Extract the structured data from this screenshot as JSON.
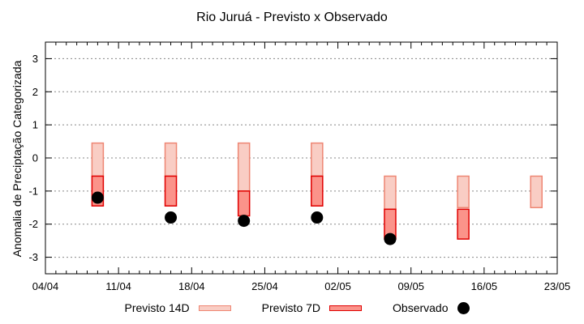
{
  "chart_data": {
    "type": "bar",
    "title": "Rio Juruá - Previsto x Observado",
    "xlabel": "",
    "ylabel": "Anomalia de Preciptação Categorizada",
    "ylim": [
      -3.5,
      3.5
    ],
    "yticks": [
      -3,
      -2,
      -1,
      0,
      1,
      2,
      3
    ],
    "grid": "horizontal-dotted",
    "grid_color": "#888888",
    "axis_color": "#000000",
    "legend_position": "bottom",
    "x_total_days": 49,
    "x_tick_interval_days": 7,
    "x_minor_tick_interval_days": 1,
    "xticks": [
      {
        "label": "04/04",
        "day": 0
      },
      {
        "label": "11/04",
        "day": 7
      },
      {
        "label": "18/04",
        "day": 14
      },
      {
        "label": "25/04",
        "day": 21
      },
      {
        "label": "02/05",
        "day": 28
      },
      {
        "label": "09/05",
        "day": 35
      },
      {
        "label": "16/05",
        "day": 42
      },
      {
        "label": "23/05",
        "day": 49
      }
    ],
    "series": [
      {
        "name": "Previsto 14D",
        "type": "range_bar",
        "fill": "#f9cdc4",
        "border": "#ee8673",
        "points": [
          {
            "date": "09/04",
            "day": 5,
            "top": 0.45,
            "bottom": -0.55
          },
          {
            "date": "16/04",
            "day": 12,
            "top": 0.45,
            "bottom": -0.55
          },
          {
            "date": "23/04",
            "day": 19,
            "top": 0.45,
            "bottom": -1.0
          },
          {
            "date": "30/04",
            "day": 26,
            "top": 0.45,
            "bottom": -0.55
          },
          {
            "date": "07/05",
            "day": 33,
            "top": -0.55,
            "bottom": -1.55
          },
          {
            "date": "14/05",
            "day": 40,
            "top": -0.55,
            "bottom": -1.5
          },
          {
            "date": "21/05",
            "day": 47,
            "top": -0.55,
            "bottom": -1.5
          }
        ]
      },
      {
        "name": "Previsto 7D",
        "type": "range_bar",
        "fill": "#fb938a",
        "border": "#e00000",
        "points": [
          {
            "date": "09/04",
            "day": 5,
            "top": -0.55,
            "bottom": -1.45
          },
          {
            "date": "16/04",
            "day": 12,
            "top": -0.55,
            "bottom": -1.45
          },
          {
            "date": "23/04",
            "day": 19,
            "top": -1.0,
            "bottom": -1.75
          },
          {
            "date": "30/04",
            "day": 26,
            "top": -0.55,
            "bottom": -1.45
          },
          {
            "date": "07/05",
            "day": 33,
            "top": -1.55,
            "bottom": -2.45
          },
          {
            "date": "14/05",
            "day": 40,
            "top": -1.55,
            "bottom": -2.45
          }
        ]
      },
      {
        "name": "Observado",
        "type": "scatter",
        "color": "#000000",
        "points": [
          {
            "date": "09/04",
            "day": 5,
            "value": -1.2
          },
          {
            "date": "16/04",
            "day": 12,
            "value": -1.8
          },
          {
            "date": "23/04",
            "day": 19,
            "value": -1.9
          },
          {
            "date": "30/04",
            "day": 26,
            "value": -1.8
          },
          {
            "date": "07/05",
            "day": 33,
            "value": -2.45
          }
        ]
      }
    ]
  }
}
